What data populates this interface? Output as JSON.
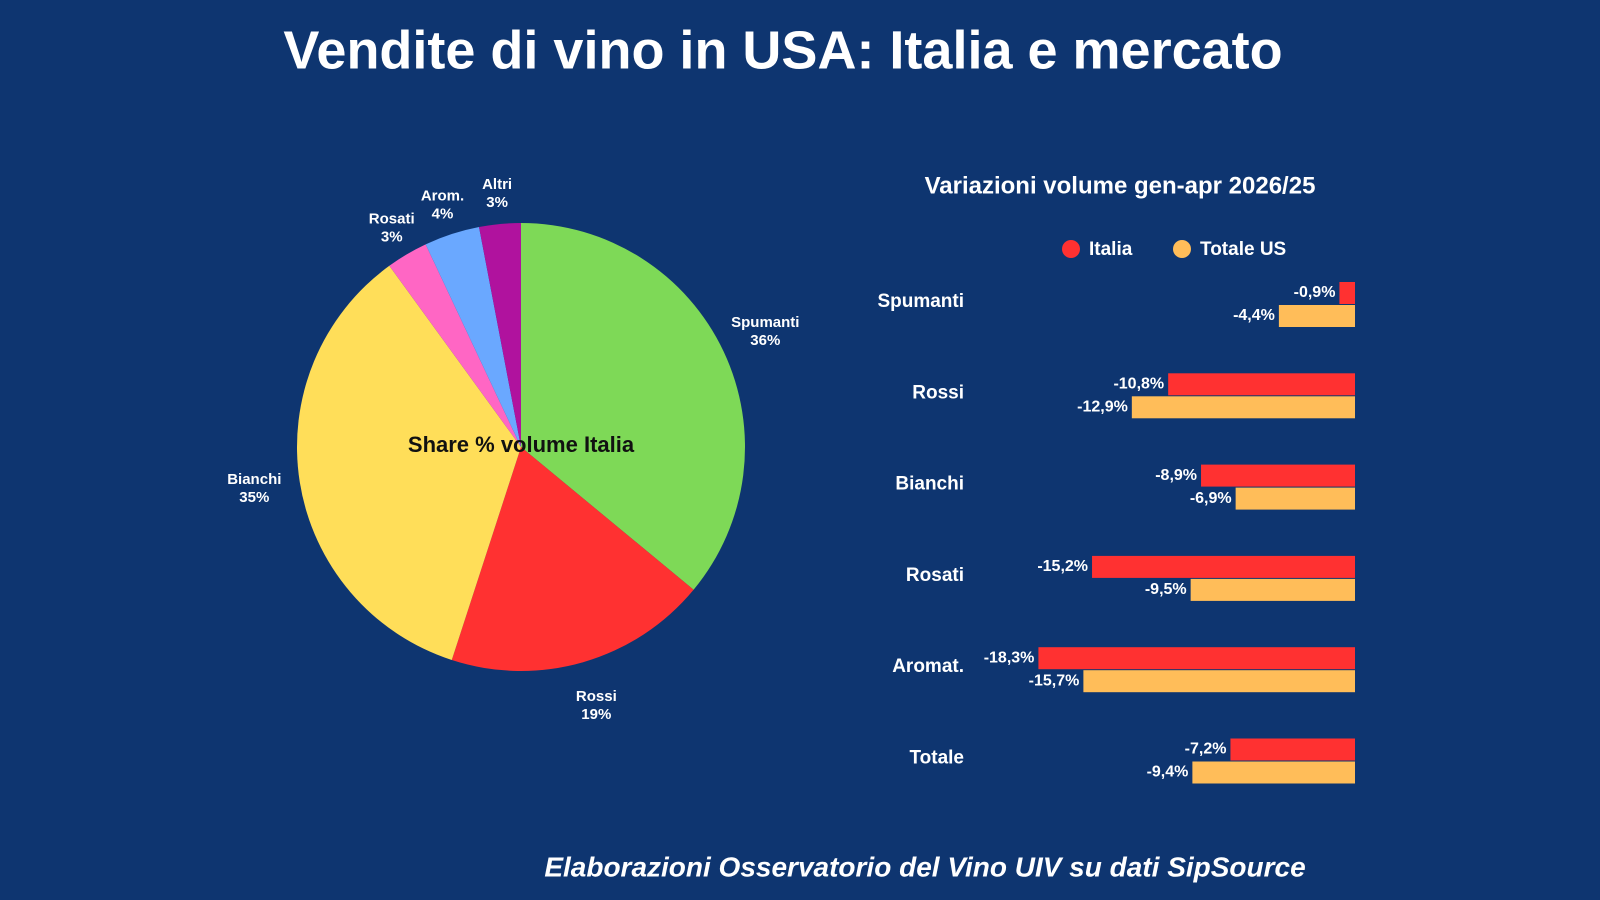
{
  "title": "Vendite di vino in USA: Italia e mercato",
  "footer": "Elaborazioni Osservatorio del Vino UIV su dati SipSource",
  "chart_data": [
    {
      "type": "pie",
      "annotation": "Share % volume Italia",
      "categories": [
        "Spumanti",
        "Rossi",
        "Bianchi",
        "Rosati",
        "Arom.",
        "Altri"
      ],
      "values": [
        36,
        19,
        35,
        3,
        4,
        3
      ],
      "value_labels": [
        "36%",
        "19%",
        "35%",
        "3%",
        "4%",
        "3%"
      ],
      "colors": [
        "#7ed957",
        "#ff3131",
        "#ffde59",
        "#ff66c4",
        "#6aa8ff",
        "#b0129e"
      ]
    },
    {
      "type": "hbar",
      "title": "Variazioni volume gen-apr 2026/25",
      "categories": [
        "Spumanti",
        "Rossi",
        "Bianchi",
        "Rosati",
        "Aromat.",
        "Totale"
      ],
      "series": [
        {
          "name": "Italia",
          "color": "#ff3131",
          "values": [
            -0.9,
            -10.8,
            -8.9,
            -15.2,
            -18.3,
            -7.2
          ],
          "value_labels": [
            "-0,9%",
            "-10,8%",
            "-8,9%",
            "-15,2%",
            "-18,3%",
            "-7,2%"
          ]
        },
        {
          "name": "Totale US",
          "color": "#ffbd59",
          "values": [
            -4.4,
            -12.9,
            -6.9,
            -9.5,
            -15.7,
            -9.4
          ],
          "value_labels": [
            "-4,4%",
            "-12,9%",
            "-6,9%",
            "-9,5%",
            "-15,7%",
            "-9,4%"
          ]
        }
      ],
      "legend": "top"
    }
  ]
}
